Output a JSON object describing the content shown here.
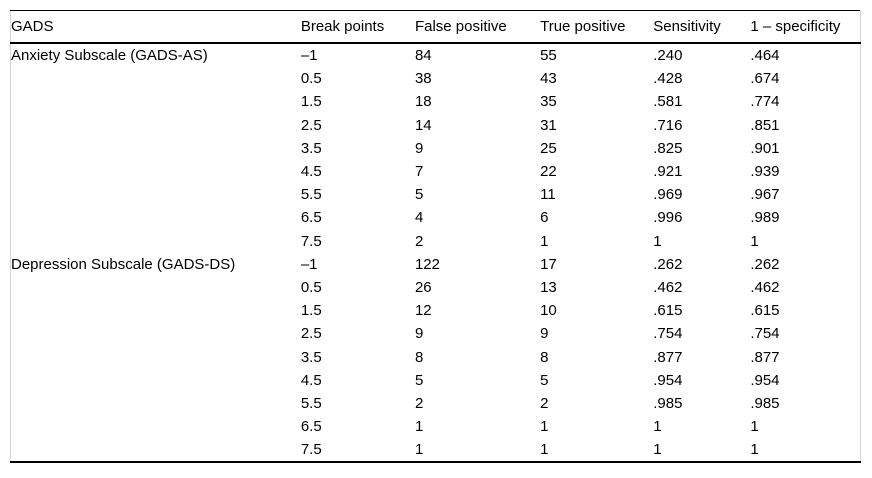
{
  "table": {
    "columns": [
      "GADS",
      "Break points",
      "False positive",
      "True positive",
      "Sensitivity",
      "1 – specificity"
    ],
    "rows": [
      {
        "gads": "Anxiety Subscale (GADS-AS)",
        "break_point": "–1",
        "false_positive": "84",
        "true_positive": "55",
        "sensitivity": ".240",
        "one_minus_specificity": ".464"
      },
      {
        "gads": "",
        "break_point": "0.5",
        "false_positive": "38",
        "true_positive": "43",
        "sensitivity": ".428",
        "one_minus_specificity": ".674"
      },
      {
        "gads": "",
        "break_point": "1.5",
        "false_positive": "18",
        "true_positive": "35",
        "sensitivity": ".581",
        "one_minus_specificity": ".774"
      },
      {
        "gads": "",
        "break_point": "2.5",
        "false_positive": "14",
        "true_positive": "31",
        "sensitivity": ".716",
        "one_minus_specificity": ".851"
      },
      {
        "gads": "",
        "break_point": "3.5",
        "false_positive": "9",
        "true_positive": "25",
        "sensitivity": ".825",
        "one_minus_specificity": ".901"
      },
      {
        "gads": "",
        "break_point": "4.5",
        "false_positive": "7",
        "true_positive": "22",
        "sensitivity": ".921",
        "one_minus_specificity": ".939"
      },
      {
        "gads": "",
        "break_point": "5.5",
        "false_positive": "5",
        "true_positive": "11",
        "sensitivity": ".969",
        "one_minus_specificity": ".967"
      },
      {
        "gads": "",
        "break_point": "6.5",
        "false_positive": "4",
        "true_positive": "6",
        "sensitivity": ".996",
        "one_minus_specificity": ".989"
      },
      {
        "gads": "",
        "break_point": "7.5",
        "false_positive": "2",
        "true_positive": "1",
        "sensitivity": "1",
        "one_minus_specificity": "1"
      },
      {
        "gads": "Depression Subscale (GADS-DS)",
        "break_point": "–1",
        "false_positive": "122",
        "true_positive": "17",
        "sensitivity": ".262",
        "one_minus_specificity": ".262"
      },
      {
        "gads": "",
        "break_point": "0.5",
        "false_positive": "26",
        "true_positive": "13",
        "sensitivity": ".462",
        "one_minus_specificity": ".462"
      },
      {
        "gads": "",
        "break_point": "1.5",
        "false_positive": "12",
        "true_positive": "10",
        "sensitivity": ".615",
        "one_minus_specificity": ".615"
      },
      {
        "gads": "",
        "break_point": "2.5",
        "false_positive": "9",
        "true_positive": "9",
        "sensitivity": ".754",
        "one_minus_specificity": ".754"
      },
      {
        "gads": "",
        "break_point": "3.5",
        "false_positive": "8",
        "true_positive": "8",
        "sensitivity": ".877",
        "one_minus_specificity": ".877"
      },
      {
        "gads": "",
        "break_point": "4.5",
        "false_positive": "5",
        "true_positive": "5",
        "sensitivity": ".954",
        "one_minus_specificity": ".954"
      },
      {
        "gads": "",
        "break_point": "5.5",
        "false_positive": "2",
        "true_positive": "2",
        "sensitivity": ".985",
        "one_minus_specificity": ".985"
      },
      {
        "gads": "",
        "break_point": "6.5",
        "false_positive": "1",
        "true_positive": "1",
        "sensitivity": "1",
        "one_minus_specificity": "1"
      },
      {
        "gads": "",
        "break_point": "7.5",
        "false_positive": "1",
        "true_positive": "1",
        "sensitivity": "1",
        "one_minus_specificity": "1"
      }
    ]
  }
}
